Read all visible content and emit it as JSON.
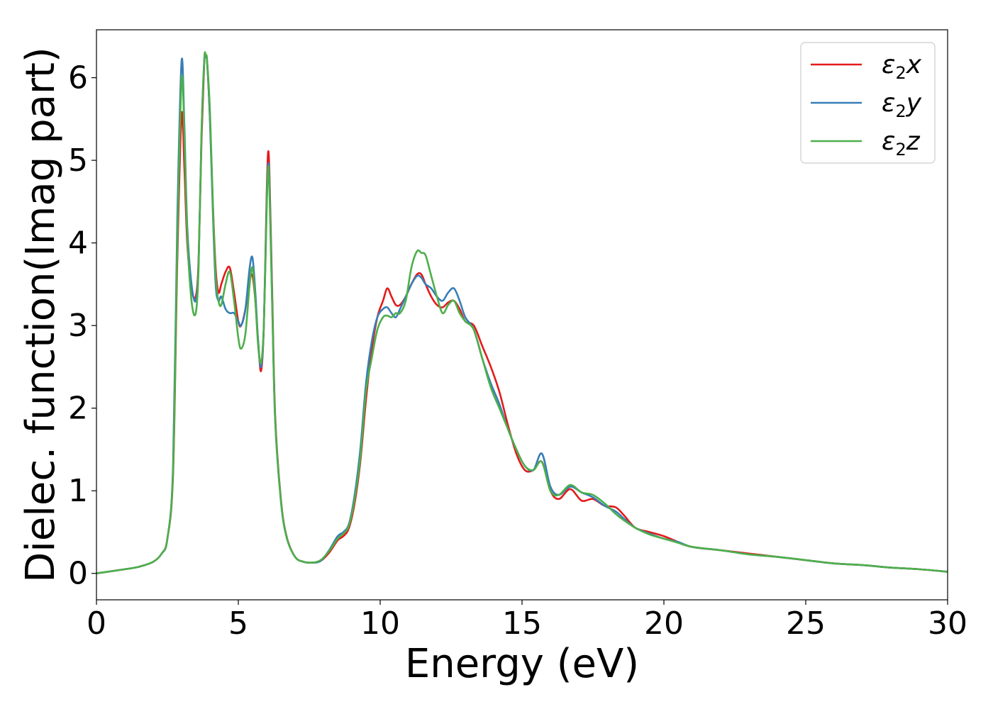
{
  "chart_data": {
    "type": "line",
    "xlabel": "Energy (eV)",
    "ylabel": "Dielec. function(Imag part)",
    "xlim": [
      0,
      30
    ],
    "ylim": [
      -0.32,
      6.58
    ],
    "xticks": [
      0,
      5,
      10,
      15,
      20,
      25,
      30
    ],
    "yticks": [
      0,
      1,
      2,
      3,
      4,
      5,
      6
    ],
    "xtick_labels": [
      "0",
      "5",
      "10",
      "15",
      "20",
      "25",
      "30"
    ],
    "ytick_labels": [
      "0",
      "1",
      "2",
      "3",
      "4",
      "5",
      "6"
    ],
    "grid": false,
    "legend_position": "top-right",
    "series": [
      {
        "name": "ε₂x",
        "legend_main": "ε",
        "legend_sub": "2",
        "legend_suffix": "x",
        "color": "#e41a1c",
        "x": [
          0,
          1,
          1.5,
          2,
          2.3,
          2.5,
          2.7,
          2.85,
          3.0,
          3.1,
          3.2,
          3.35,
          3.5,
          3.6,
          3.7,
          3.8,
          3.85,
          3.9,
          4.0,
          4.1,
          4.2,
          4.3,
          4.4,
          4.55,
          4.7,
          4.85,
          5.0,
          5.1,
          5.25,
          5.4,
          5.5,
          5.6,
          5.7,
          5.8,
          5.9,
          6.0,
          6.05,
          6.1,
          6.2,
          6.3,
          6.5,
          6.7,
          7.0,
          7.3,
          7.6,
          7.9,
          8.2,
          8.5,
          8.7,
          8.9,
          9.1,
          9.3,
          9.5,
          9.7,
          9.9,
          10.1,
          10.25,
          10.4,
          10.55,
          10.7,
          10.9,
          11.1,
          11.3,
          11.45,
          11.6,
          11.8,
          12.0,
          12.2,
          12.4,
          12.6,
          12.8,
          13.0,
          13.3,
          13.6,
          13.9,
          14.2,
          14.5,
          14.8,
          15.1,
          15.4,
          15.7,
          16.0,
          16.3,
          16.7,
          17.1,
          17.5,
          17.9,
          18.3,
          18.6,
          19.0,
          19.5,
          20.0,
          20.5,
          21.0,
          22.0,
          23.0,
          24.0,
          25.0,
          26.0,
          27.0,
          28.0,
          29.0,
          30.0
        ],
        "y": [
          0,
          0.05,
          0.08,
          0.14,
          0.24,
          0.42,
          1.2,
          3.8,
          5.55,
          4.9,
          4.0,
          3.45,
          3.35,
          3.8,
          5.2,
          6.2,
          6.25,
          6.2,
          5.5,
          4.5,
          3.7,
          3.4,
          3.5,
          3.65,
          3.7,
          3.4,
          3.05,
          3.0,
          3.2,
          3.55,
          3.6,
          3.3,
          2.8,
          2.45,
          3.0,
          4.6,
          5.1,
          4.8,
          3.3,
          1.9,
          0.9,
          0.45,
          0.2,
          0.14,
          0.13,
          0.15,
          0.25,
          0.4,
          0.45,
          0.55,
          0.85,
          1.35,
          2.1,
          2.7,
          3.1,
          3.3,
          3.45,
          3.35,
          3.25,
          3.25,
          3.35,
          3.5,
          3.62,
          3.62,
          3.5,
          3.35,
          3.25,
          3.22,
          3.28,
          3.3,
          3.2,
          3.05,
          3.0,
          2.75,
          2.5,
          2.2,
          1.8,
          1.45,
          1.25,
          1.25,
          1.35,
          1.0,
          0.9,
          1.02,
          0.88,
          0.9,
          0.82,
          0.8,
          0.7,
          0.55,
          0.5,
          0.45,
          0.38,
          0.32,
          0.28,
          0.24,
          0.2,
          0.16,
          0.12,
          0.1,
          0.07,
          0.05,
          0.02
        ]
      },
      {
        "name": "ε₂y",
        "legend_main": "ε",
        "legend_sub": "2",
        "legend_suffix": "y",
        "color": "#377eb8",
        "x": [
          0,
          1,
          1.5,
          2,
          2.3,
          2.5,
          2.7,
          2.85,
          3.0,
          3.1,
          3.2,
          3.35,
          3.5,
          3.6,
          3.7,
          3.8,
          3.85,
          3.9,
          4.0,
          4.1,
          4.2,
          4.3,
          4.4,
          4.55,
          4.7,
          4.85,
          5.0,
          5.1,
          5.25,
          5.4,
          5.5,
          5.6,
          5.7,
          5.8,
          5.9,
          6.0,
          6.05,
          6.1,
          6.2,
          6.3,
          6.5,
          6.7,
          7.0,
          7.3,
          7.6,
          7.9,
          8.2,
          8.5,
          8.7,
          8.9,
          9.1,
          9.3,
          9.5,
          9.7,
          9.9,
          10.1,
          10.25,
          10.4,
          10.55,
          10.7,
          10.9,
          11.1,
          11.3,
          11.45,
          11.6,
          11.8,
          12.0,
          12.2,
          12.4,
          12.6,
          12.8,
          13.0,
          13.3,
          13.6,
          13.9,
          14.2,
          14.5,
          14.8,
          15.1,
          15.4,
          15.7,
          16.0,
          16.3,
          16.7,
          17.1,
          17.5,
          17.9,
          18.3,
          18.6,
          19.0,
          19.5,
          20.0,
          20.5,
          21.0,
          22.0,
          23.0,
          24.0,
          25.0,
          26.0,
          27.0,
          28.0,
          29.0,
          30.0
        ],
        "y": [
          0,
          0.05,
          0.08,
          0.14,
          0.24,
          0.42,
          1.3,
          4.3,
          6.2,
          5.4,
          4.2,
          3.5,
          3.3,
          3.75,
          5.3,
          6.2,
          6.25,
          6.18,
          5.5,
          4.4,
          3.5,
          3.3,
          3.35,
          3.2,
          3.15,
          3.15,
          3.05,
          3.0,
          3.2,
          3.7,
          3.82,
          3.4,
          2.8,
          2.5,
          3.0,
          4.5,
          4.95,
          4.7,
          3.2,
          1.85,
          0.88,
          0.44,
          0.2,
          0.14,
          0.13,
          0.15,
          0.28,
          0.45,
          0.5,
          0.6,
          0.95,
          1.5,
          2.3,
          2.8,
          3.1,
          3.2,
          3.22,
          3.15,
          3.1,
          3.2,
          3.35,
          3.5,
          3.6,
          3.58,
          3.5,
          3.45,
          3.35,
          3.3,
          3.4,
          3.45,
          3.3,
          3.1,
          2.95,
          2.6,
          2.3,
          2.05,
          1.75,
          1.5,
          1.3,
          1.25,
          1.45,
          1.05,
          0.95,
          1.05,
          0.98,
          0.92,
          0.82,
          0.75,
          0.66,
          0.55,
          0.48,
          0.42,
          0.38,
          0.32,
          0.28,
          0.23,
          0.2,
          0.16,
          0.12,
          0.1,
          0.07,
          0.05,
          0.02
        ]
      },
      {
        "name": "ε₂z",
        "legend_main": "ε",
        "legend_sub": "2",
        "legend_suffix": "z",
        "color": "#4daf4a",
        "x": [
          0,
          1,
          1.5,
          2,
          2.3,
          2.5,
          2.7,
          2.85,
          3.0,
          3.1,
          3.2,
          3.35,
          3.5,
          3.6,
          3.7,
          3.8,
          3.85,
          3.9,
          4.0,
          4.1,
          4.2,
          4.3,
          4.4,
          4.55,
          4.7,
          4.85,
          5.0,
          5.1,
          5.25,
          5.4,
          5.5,
          5.6,
          5.7,
          5.8,
          5.9,
          6.0,
          6.05,
          6.1,
          6.2,
          6.3,
          6.5,
          6.7,
          7.0,
          7.3,
          7.6,
          7.9,
          8.2,
          8.5,
          8.7,
          8.9,
          9.1,
          9.3,
          9.5,
          9.7,
          9.9,
          10.1,
          10.25,
          10.4,
          10.55,
          10.7,
          10.9,
          11.1,
          11.3,
          11.45,
          11.6,
          11.8,
          12.0,
          12.2,
          12.4,
          12.6,
          12.8,
          13.0,
          13.3,
          13.6,
          13.9,
          14.2,
          14.5,
          14.8,
          15.1,
          15.4,
          15.7,
          16.0,
          16.3,
          16.7,
          17.1,
          17.5,
          17.9,
          18.3,
          18.6,
          19.0,
          19.5,
          20.0,
          20.5,
          21.0,
          22.0,
          23.0,
          24.0,
          25.0,
          26.0,
          27.0,
          28.0,
          29.0,
          30.0
        ],
        "y": [
          0,
          0.05,
          0.08,
          0.14,
          0.24,
          0.42,
          1.25,
          4.0,
          5.98,
          5.3,
          4.1,
          3.3,
          3.15,
          3.7,
          5.3,
          6.22,
          6.27,
          6.2,
          5.6,
          4.5,
          3.6,
          3.3,
          3.25,
          3.5,
          3.65,
          3.3,
          2.85,
          2.72,
          2.9,
          3.5,
          3.7,
          3.3,
          2.75,
          2.55,
          3.0,
          4.4,
          4.92,
          4.6,
          3.15,
          1.85,
          0.88,
          0.44,
          0.2,
          0.14,
          0.13,
          0.16,
          0.27,
          0.42,
          0.48,
          0.58,
          0.9,
          1.4,
          2.2,
          2.6,
          2.95,
          3.1,
          3.12,
          3.1,
          3.15,
          3.15,
          3.3,
          3.7,
          3.9,
          3.88,
          3.85,
          3.6,
          3.35,
          3.15,
          3.25,
          3.3,
          3.15,
          3.05,
          2.95,
          2.6,
          2.25,
          2.0,
          1.75,
          1.5,
          1.3,
          1.25,
          1.35,
          1.0,
          0.95,
          1.07,
          0.98,
          0.95,
          0.85,
          0.72,
          0.64,
          0.55,
          0.47,
          0.42,
          0.37,
          0.32,
          0.28,
          0.23,
          0.2,
          0.16,
          0.12,
          0.1,
          0.07,
          0.05,
          0.02
        ]
      }
    ]
  }
}
